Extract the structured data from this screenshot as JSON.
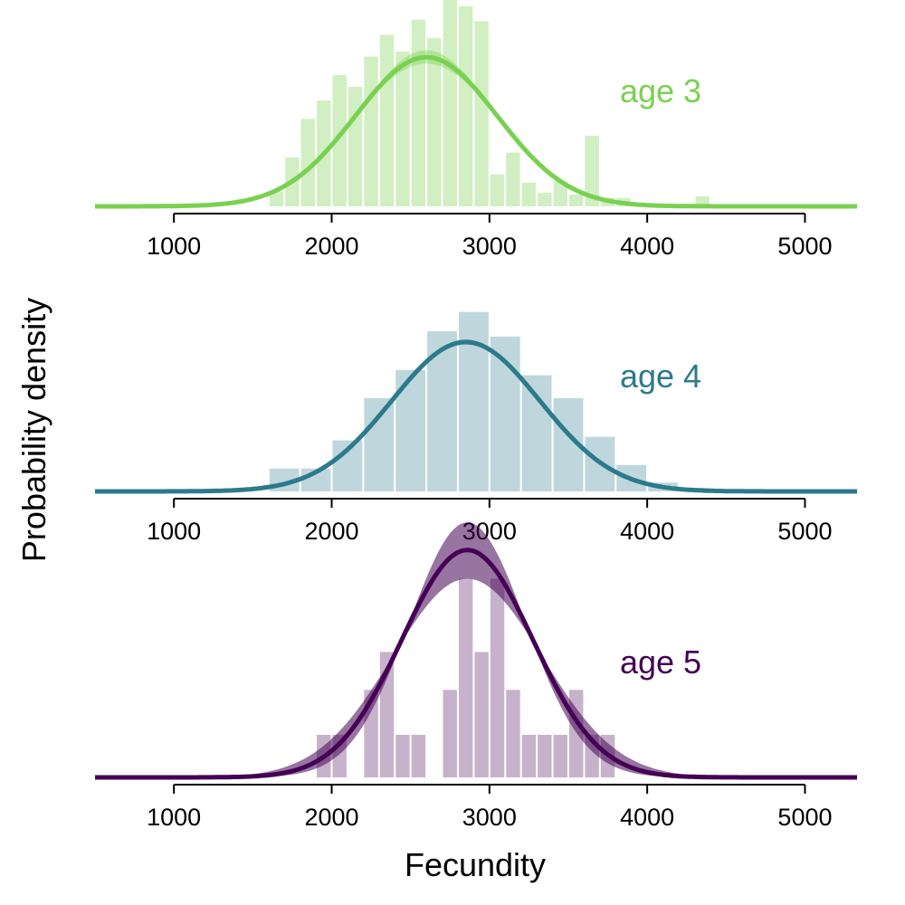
{
  "chart_data": {
    "type": "histogram-with-density",
    "xlabel": "Fecundity",
    "ylabel": "Probability density",
    "xlim": [
      500,
      5330
    ],
    "xticks": [
      1000,
      2000,
      3000,
      4000,
      5000
    ],
    "tick_labels": [
      "1000",
      "2000",
      "3000",
      "4000",
      "5000"
    ],
    "bin_width": 100,
    "panels": [
      {
        "label": "age 3",
        "color": "#7ad151",
        "ylim": [
          0,
          0.00113
        ],
        "density_mean": 2600,
        "density_sd": 450,
        "density_band_sd": [
          430,
          470
        ],
        "band_opacity": 0.4,
        "hist_opacity": 0.35,
        "hist_x": [
          1600,
          1700,
          1800,
          1900,
          2000,
          2100,
          2200,
          2300,
          2400,
          2500,
          2600,
          2700,
          2800,
          2900,
          3000,
          3100,
          3200,
          3300,
          3400,
          3500,
          3600,
          3700,
          3800,
          4300
        ],
        "hist_y": [
          9e-05,
          0.00029,
          0.00052,
          0.00063,
          0.00078,
          0.00071,
          0.00089,
          0.00102,
          0.00092,
          0.00111,
          0.001,
          0.00143,
          0.00119,
          0.0011,
          0.00019,
          0.00032,
          0.00014,
          8e-05,
          0.00015,
          7e-05,
          0.00042,
          5e-05,
          5e-05,
          6e-05
        ]
      },
      {
        "label": "age 4",
        "color": "#2c7a8c",
        "ylim": [
          0,
          0.00108
        ],
        "density_mean": 2850,
        "density_sd": 470,
        "density_band_sd": [
          462,
          478
        ],
        "band_opacity": 0.4,
        "hist_opacity": 0.3,
        "hist_x": [
          1600,
          1800,
          2000,
          2200,
          2400,
          2600,
          2800,
          3000,
          3200,
          3400,
          3600,
          3800,
          4000,
          4200
        ],
        "hist_y": [
          0.00013,
          0.00013,
          0.00029,
          0.00053,
          0.00069,
          0.00091,
          0.00102,
          0.00088,
          0.00066,
          0.00053,
          0.00031,
          0.00015,
          5e-05,
          2e-05
        ],
        "hist_width": 200
      },
      {
        "label": "age 5",
        "color": "#440154",
        "ylim": [
          0,
          0.00088
        ],
        "density_mean": 2860,
        "density_sd": 415,
        "density_band_sd": [
          370,
          475
        ],
        "band_opacity": 0.55,
        "hist_opacity": 0.3,
        "hist_x": [
          1900,
          2000,
          2200,
          2300,
          2400,
          2500,
          2700,
          2800,
          2900,
          3000,
          3100,
          3200,
          3300,
          3400,
          3500,
          3600,
          3700
        ],
        "hist_y": [
          0.00018,
          0.00018,
          0.00037,
          0.00053,
          0.00018,
          0.00018,
          0.00037,
          0.00084,
          0.00053,
          0.00084,
          0.00037,
          0.00018,
          0.00018,
          0.00018,
          0.00037,
          0.00018,
          0.00018
        ]
      }
    ]
  }
}
